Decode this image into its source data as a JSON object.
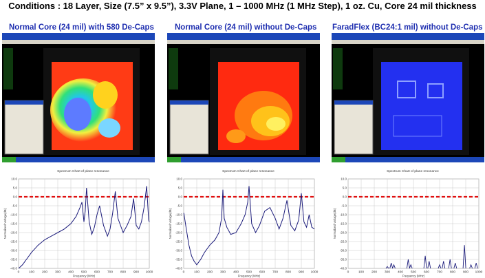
{
  "header": {
    "title": "Conditions : 18 Layer, Size (7.5” x 9.5”), 3.3V Plane, 1 – 1000 MHz (1 MHz Step), 1 oz. Cu, Core 24 mil thickness"
  },
  "panels": [
    {
      "title": "Normal Core (24 mil) with 580 De-Caps"
    },
    {
      "title": "Normal Core (24 mil) without De-Caps"
    },
    {
      "title": "FaradFlex (BC24:1 mil) without De-Caps"
    }
  ],
  "chart_data": [
    {
      "type": "line",
      "title": "Spectrum Chart of plane resonance",
      "xlabel": "Frequency (MHz)",
      "ylabel": "Normalized Voltage(dB)",
      "xlim": [
        0,
        1000
      ],
      "ylim": [
        -40,
        10
      ],
      "xticks": [
        "0",
        "100",
        "200",
        "300",
        "400",
        "500",
        "600",
        "700",
        "800",
        "900",
        "1000"
      ],
      "yticks": [
        "10.0",
        "5.0",
        "0.0",
        "-5.0",
        "-10.0",
        "-15.0",
        "-20.0",
        "-25.0",
        "-30.0",
        "-35.0",
        "-40.0"
      ],
      "reference_line_y": 0,
      "x": [
        1,
        30,
        60,
        100,
        150,
        200,
        250,
        300,
        350,
        400,
        440,
        470,
        485,
        500,
        510,
        520,
        540,
        560,
        580,
        600,
        620,
        650,
        680,
        700,
        720,
        740,
        760,
        800,
        830,
        860,
        880,
        900,
        920,
        940,
        960,
        980,
        995,
        1000
      ],
      "y": [
        -40,
        -38,
        -35,
        -31,
        -27,
        -24,
        -22,
        -20,
        -18,
        -15,
        -11,
        -6,
        -3,
        -14,
        -8,
        5,
        -14,
        -21,
        -17,
        -10,
        -5,
        -16,
        -22,
        -18,
        -9,
        3,
        -12,
        -20,
        -16,
        -11,
        -1,
        -16,
        -18,
        -14,
        -6,
        6,
        -13,
        -14
      ]
    },
    {
      "type": "line",
      "title": "Spectrum Chart of plane resonance",
      "xlabel": "Frequency (MHz)",
      "ylabel": "Normalized Voltage(dB)",
      "xlim": [
        0,
        1000
      ],
      "ylim": [
        -40,
        10
      ],
      "xticks": [
        "0",
        "100",
        "200",
        "300",
        "400",
        "500",
        "600",
        "700",
        "800",
        "900",
        "1000"
      ],
      "yticks": [
        "10.0",
        "5.0",
        "0.0",
        "-5.0",
        "-10.0",
        "-15.0",
        "-20.0",
        "-25.0",
        "-30.0",
        "-35.0",
        "-40.0"
      ],
      "reference_line_y": 0,
      "x": [
        1,
        20,
        40,
        60,
        80,
        100,
        130,
        160,
        200,
        240,
        270,
        290,
        300,
        310,
        330,
        360,
        400,
        440,
        470,
        490,
        500,
        520,
        550,
        580,
        620,
        660,
        700,
        730,
        760,
        790,
        820,
        850,
        880,
        900,
        920,
        940,
        960,
        980,
        1000
      ],
      "y": [
        -9,
        -18,
        -27,
        -33,
        -36,
        -38,
        -35,
        -31,
        -27,
        -24,
        -20,
        -12,
        4,
        -12,
        -17,
        -21,
        -20,
        -15,
        -10,
        -3,
        6,
        -15,
        -20,
        -16,
        -8,
        -6,
        -12,
        -18,
        -12,
        -2,
        -16,
        -19,
        -13,
        2,
        -14,
        -17,
        -10,
        -17,
        -18
      ]
    },
    {
      "type": "line",
      "title": "Spectrum Chart of plane resonance",
      "xlabel": "Frequency (MHz)",
      "ylabel": "Normalized Voltage(dB)",
      "xlim": [
        0,
        1000
      ],
      "ylim": [
        -40,
        10
      ],
      "xticks": [
        "0",
        "100",
        "200",
        "300",
        "400",
        "500",
        "600",
        "700",
        "800",
        "900",
        "1000"
      ],
      "yticks": [
        "10.0",
        "5.0",
        "0.0",
        "-5.0",
        "-10.0",
        "-15.0",
        "-20.0",
        "-25.0",
        "-30.0",
        "-35.0",
        "-40.0"
      ],
      "reference_line_y": 0,
      "spikes": [
        {
          "x": 300,
          "y": -39
        },
        {
          "x": 330,
          "y": -37
        },
        {
          "x": 350,
          "y": -38
        },
        {
          "x": 460,
          "y": -35
        },
        {
          "x": 480,
          "y": -38
        },
        {
          "x": 590,
          "y": -33
        },
        {
          "x": 620,
          "y": -36
        },
        {
          "x": 700,
          "y": -38
        },
        {
          "x": 730,
          "y": -36
        },
        {
          "x": 780,
          "y": -35
        },
        {
          "x": 820,
          "y": -37
        },
        {
          "x": 890,
          "y": -27
        },
        {
          "x": 940,
          "y": -38
        },
        {
          "x": 980,
          "y": -37
        }
      ]
    }
  ]
}
